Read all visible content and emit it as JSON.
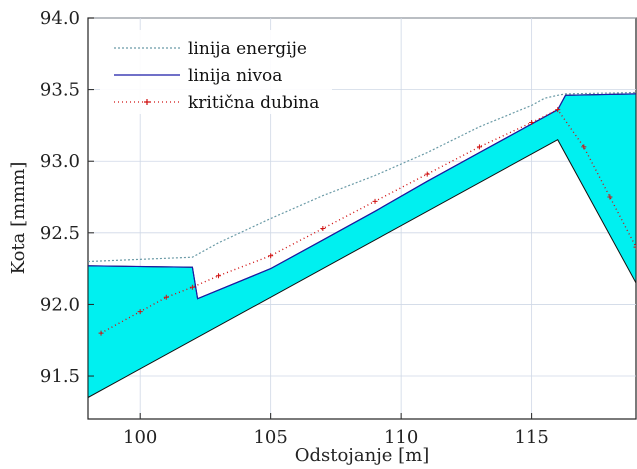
{
  "chart_data": {
    "type": "line",
    "title": "",
    "xlabel": "Odstojanje [m]",
    "ylabel": "Kota [mmm]",
    "xlim": [
      98,
      119
    ],
    "ylim": [
      91.2,
      94.0
    ],
    "x_ticks": [
      100,
      105,
      110,
      115
    ],
    "x_tick_labels": [
      "100",
      "105",
      "110",
      "115"
    ],
    "y_ticks": [
      91.5,
      92.0,
      92.5,
      93.0,
      93.5,
      94.0
    ],
    "y_tick_labels": [
      "91.5",
      "92.0",
      "92.5",
      "93.0",
      "93.5",
      "94.0"
    ],
    "grid": true,
    "legend_position": "top-left",
    "fill_color": "#00f0f0",
    "series": [
      {
        "name": "linija energije",
        "style": "dotted",
        "color": "#6a9aa6",
        "x": [
          98.0,
          102.0,
          103.0,
          105.0,
          107.0,
          109.0,
          111.0,
          113.0,
          115.0,
          115.5,
          116.0,
          116.3,
          119.0
        ],
        "y": [
          92.3,
          92.33,
          92.43,
          92.6,
          92.76,
          92.9,
          93.06,
          93.24,
          93.39,
          93.44,
          93.46,
          93.47,
          93.48
        ]
      },
      {
        "name": "linija nivoa",
        "style": "solid",
        "color": "#1a1aa8",
        "x": [
          98.0,
          102.0,
          102.2,
          105.0,
          107.0,
          109.0,
          111.0,
          113.0,
          115.0,
          116.0,
          116.3,
          119.0
        ],
        "y": [
          92.27,
          92.26,
          92.04,
          92.25,
          92.45,
          92.65,
          92.86,
          93.06,
          93.26,
          93.36,
          93.46,
          93.47
        ]
      },
      {
        "name": "kritična dubina",
        "style": "markers",
        "color": "#d01010",
        "x": [
          98.5,
          100.0,
          101.0,
          102.0,
          103.0,
          105.0,
          107.0,
          109.0,
          111.0,
          113.0,
          115.0,
          116.0,
          117.0,
          118.0,
          119.0
        ],
        "y": [
          91.8,
          91.95,
          92.05,
          92.12,
          92.2,
          92.34,
          92.53,
          92.72,
          92.91,
          93.1,
          93.27,
          93.36,
          93.1,
          92.75,
          92.4
        ]
      }
    ],
    "bed_profile": {
      "x": [
        98.0,
        116.0,
        119.0
      ],
      "y": [
        91.35,
        93.15,
        92.15
      ]
    }
  }
}
